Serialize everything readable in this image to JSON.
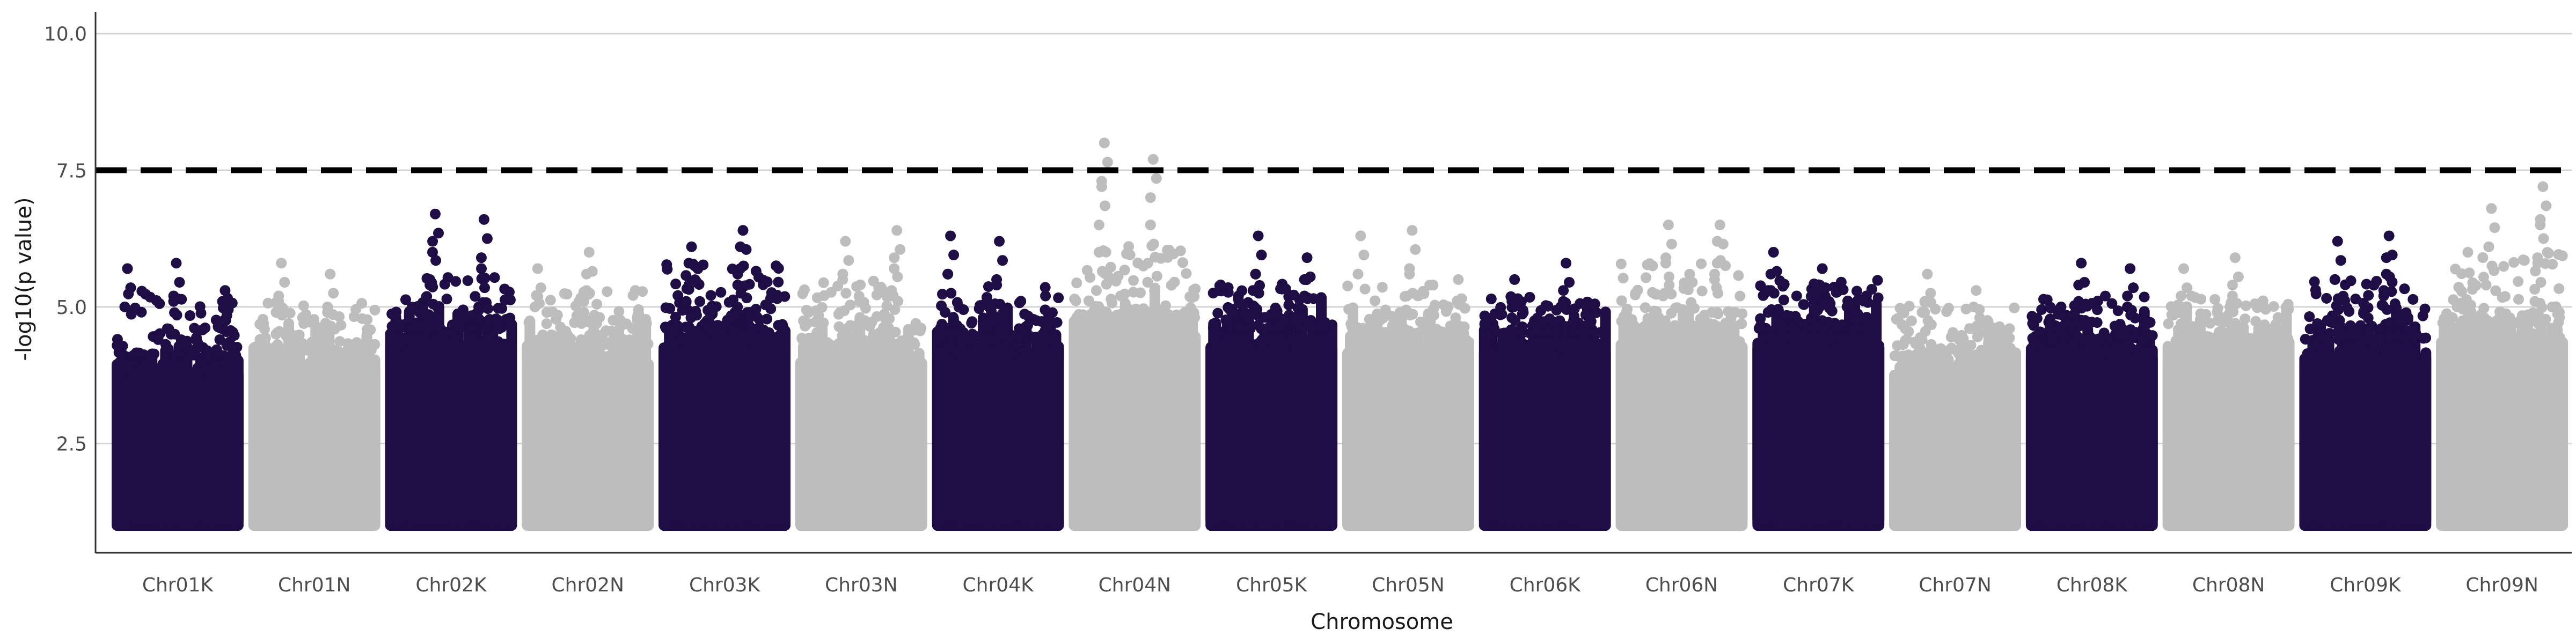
{
  "chart_data": {
    "type": "scatter",
    "subtype": "manhattan",
    "xlabel": "Chromosome",
    "ylabel": "-log10(p value)",
    "ylim": [
      0.5,
      10.4
    ],
    "yticks": [
      2.5,
      5.0,
      7.5,
      10.0
    ],
    "ytick_labels": [
      "2.5",
      "5.0",
      "7.5",
      "10.0"
    ],
    "grid": "horizontal major lines",
    "threshold": 7.5,
    "threshold_style": "dashed black line",
    "point_floor": 1.0,
    "colors": {
      "odd": "#1f0e45",
      "even": "#bdbdbd",
      "grid": "#d4d4d4",
      "axis": "#333333",
      "threshold": "#000000"
    },
    "chromosomes": [
      {
        "name": "Chr01K",
        "color": "#1f0e45",
        "top": [
          5.7,
          5.8,
          5.3,
          5.2,
          5.1
        ],
        "base": 4.1
      },
      {
        "name": "Chr01N",
        "color": "#bdbdbd",
        "top": [
          5.8,
          5.6,
          5.2,
          5.0,
          4.9
        ],
        "base": 4.2
      },
      {
        "name": "Chr02K",
        "color": "#1f0e45",
        "top": [
          6.7,
          6.6,
          6.2,
          5.7,
          5.4
        ],
        "base": 4.6
      },
      {
        "name": "Chr02N",
        "color": "#bdbdbd",
        "top": [
          6.0,
          5.7,
          5.6,
          5.3,
          5.1
        ],
        "base": 4.3
      },
      {
        "name": "Chr03K",
        "color": "#1f0e45",
        "top": [
          6.4,
          6.1,
          6.1,
          5.8,
          5.6
        ],
        "base": 4.6
      },
      {
        "name": "Chr03N",
        "color": "#bdbdbd",
        "top": [
          6.4,
          6.2,
          5.9,
          5.6,
          5.3
        ],
        "base": 4.3
      },
      {
        "name": "Chr04K",
        "color": "#1f0e45",
        "top": [
          6.3,
          6.2,
          5.6,
          5.4,
          5.2
        ],
        "base": 4.4
      },
      {
        "name": "Chr04N",
        "color": "#bdbdbd",
        "top": [
          8.0,
          7.7,
          7.2,
          6.5,
          6.0
        ],
        "base": 4.8
      },
      {
        "name": "Chr05K",
        "color": "#1f0e45",
        "top": [
          6.3,
          5.9,
          5.6,
          5.5,
          5.3
        ],
        "base": 4.6
      },
      {
        "name": "Chr05N",
        "color": "#bdbdbd",
        "top": [
          6.4,
          6.3,
          5.6,
          5.5,
          5.2
        ],
        "base": 4.5
      },
      {
        "name": "Chr06K",
        "color": "#1f0e45",
        "top": [
          5.8,
          5.5,
          5.3,
          5.1,
          5.0
        ],
        "base": 4.5
      },
      {
        "name": "Chr06N",
        "color": "#bdbdbd",
        "top": [
          6.5,
          6.5,
          6.2,
          5.9,
          5.6
        ],
        "base": 4.6
      },
      {
        "name": "Chr07K",
        "color": "#1f0e45",
        "top": [
          6.0,
          5.7,
          5.6,
          5.4,
          5.3
        ],
        "base": 4.6
      },
      {
        "name": "Chr07N",
        "color": "#bdbdbd",
        "top": [
          5.6,
          5.3,
          5.1,
          5.0,
          4.9
        ],
        "base": 4.1
      },
      {
        "name": "Chr08K",
        "color": "#1f0e45",
        "top": [
          5.8,
          5.7,
          5.4,
          5.2,
          5.0
        ],
        "base": 4.4
      },
      {
        "name": "Chr08N",
        "color": "#bdbdbd",
        "top": [
          5.9,
          5.7,
          5.4,
          5.2,
          5.0
        ],
        "base": 4.4
      },
      {
        "name": "Chr09K",
        "color": "#1f0e45",
        "top": [
          6.3,
          6.2,
          5.9,
          5.5,
          5.3
        ],
        "base": 4.4
      },
      {
        "name": "Chr09N",
        "color": "#bdbdbd",
        "top": [
          7.2,
          6.8,
          6.6,
          6.1,
          5.8
        ],
        "base": 4.7
      }
    ]
  }
}
